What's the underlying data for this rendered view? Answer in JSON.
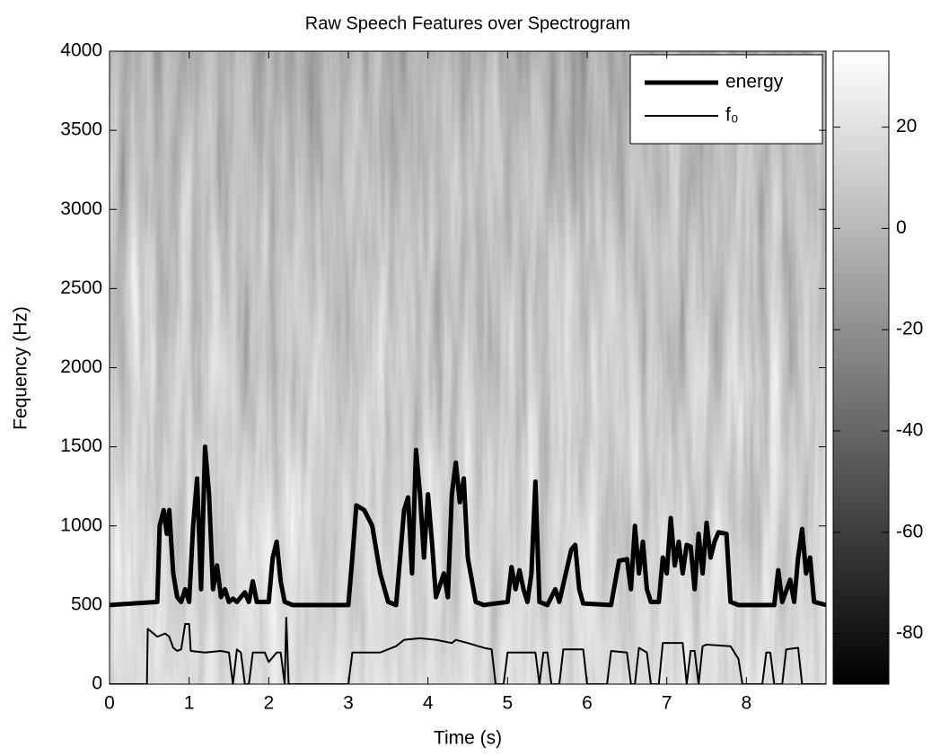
{
  "chart_data": {
    "type": "line",
    "title": "Raw Speech Features over Spectrogram",
    "xlabel": "Time (s)",
    "ylabel": "Fequency (Hz)",
    "xlim": [
      0,
      9
    ],
    "ylim": [
      0,
      4000
    ],
    "xticks": [
      0,
      1,
      2,
      3,
      4,
      5,
      6,
      7,
      8
    ],
    "yticks": [
      0,
      500,
      1000,
      1500,
      2000,
      2500,
      3000,
      3500,
      4000
    ],
    "legend": "upper right",
    "series": [
      {
        "name": "energy",
        "color": "#000000",
        "line_width": 5,
        "x": [
          0,
          0.6,
          0.63,
          0.68,
          0.72,
          0.75,
          0.8,
          0.85,
          0.9,
          0.95,
          1.0,
          1.05,
          1.1,
          1.15,
          1.2,
          1.25,
          1.3,
          1.35,
          1.4,
          1.45,
          1.5,
          1.55,
          1.6,
          1.7,
          1.75,
          1.8,
          1.85,
          1.9,
          2.0,
          2.05,
          2.1,
          2.15,
          2.2,
          2.3,
          3.0,
          3.05,
          3.1,
          3.2,
          3.3,
          3.4,
          3.5,
          3.6,
          3.7,
          3.75,
          3.8,
          3.85,
          3.9,
          3.95,
          4.0,
          4.05,
          4.1,
          4.2,
          4.25,
          4.3,
          4.35,
          4.4,
          4.45,
          4.5,
          4.6,
          4.7,
          5.0,
          5.05,
          5.1,
          5.15,
          5.2,
          5.25,
          5.3,
          5.35,
          5.4,
          5.5,
          5.6,
          5.65,
          5.8,
          5.85,
          5.9,
          5.95,
          6.3,
          6.4,
          6.5,
          6.55,
          6.6,
          6.65,
          6.7,
          6.75,
          6.8,
          6.9,
          6.95,
          7.0,
          7.05,
          7.1,
          7.15,
          7.2,
          7.25,
          7.3,
          7.35,
          7.4,
          7.45,
          7.5,
          7.55,
          7.6,
          7.65,
          7.75,
          7.8,
          7.9,
          8.35,
          8.4,
          8.45,
          8.55,
          8.6,
          8.65,
          8.7,
          8.75,
          8.8,
          8.85,
          9.0
        ],
        "values": [
          500,
          520,
          1000,
          1100,
          950,
          1100,
          700,
          550,
          520,
          600,
          520,
          1000,
          1300,
          600,
          1500,
          1200,
          600,
          750,
          550,
          600,
          520,
          540,
          520,
          580,
          520,
          650,
          520,
          520,
          520,
          800,
          900,
          650,
          520,
          500,
          500,
          800,
          1130,
          1100,
          1000,
          700,
          520,
          500,
          1100,
          1180,
          700,
          1480,
          1200,
          800,
          1200,
          900,
          550,
          700,
          550,
          1200,
          1400,
          1150,
          1300,
          800,
          520,
          500,
          520,
          740,
          600,
          720,
          600,
          520,
          700,
          1280,
          520,
          500,
          600,
          520,
          850,
          880,
          600,
          510,
          500,
          780,
          790,
          600,
          1000,
          700,
          900,
          600,
          520,
          520,
          800,
          700,
          1050,
          750,
          900,
          700,
          880,
          870,
          600,
          950,
          700,
          1020,
          800,
          900,
          960,
          950,
          520,
          500,
          500,
          720,
          520,
          660,
          520,
          800,
          980,
          700,
          800,
          520,
          500
        ]
      },
      {
        "name": "f₀",
        "color": "#000000",
        "line_width": 2,
        "x": [
          0,
          0.47,
          0.48,
          0.6,
          0.7,
          0.75,
          0.8,
          0.85,
          0.9,
          0.95,
          1.0,
          1.02,
          1.2,
          1.4,
          1.5,
          1.55,
          1.6,
          1.65,
          1.7,
          1.75,
          1.8,
          1.95,
          2.0,
          2.1,
          2.15,
          2.2,
          2.22,
          2.25,
          3.0,
          3.05,
          3.2,
          3.4,
          3.5,
          3.6,
          3.7,
          3.9,
          4.1,
          4.3,
          4.35,
          4.5,
          4.7,
          4.8,
          4.85,
          4.95,
          5.0,
          5.2,
          5.35,
          5.4,
          5.45,
          5.5,
          5.55,
          5.65,
          5.7,
          5.95,
          6.0,
          6.25,
          6.3,
          6.5,
          6.55,
          6.6,
          6.65,
          6.75,
          6.8,
          6.9,
          6.95,
          7.2,
          7.25,
          7.3,
          7.35,
          7.4,
          7.45,
          7.5,
          7.8,
          7.9,
          7.95,
          8.2,
          8.25,
          8.3,
          8.35,
          8.45,
          8.5,
          8.65,
          8.7,
          9.0
        ],
        "values": [
          0,
          0,
          350,
          300,
          320,
          300,
          230,
          210,
          220,
          380,
          380,
          210,
          200,
          210,
          200,
          0,
          220,
          200,
          0,
          0,
          200,
          200,
          140,
          200,
          200,
          0,
          420,
          0,
          0,
          200,
          200,
          200,
          220,
          240,
          280,
          290,
          280,
          260,
          280,
          260,
          230,
          220,
          0,
          0,
          200,
          200,
          200,
          0,
          200,
          200,
          0,
          0,
          220,
          220,
          0,
          0,
          210,
          200,
          0,
          0,
          230,
          200,
          0,
          0,
          260,
          260,
          0,
          210,
          210,
          0,
          240,
          250,
          240,
          160,
          0,
          0,
          200,
          200,
          0,
          0,
          220,
          230,
          0,
          0
        ]
      }
    ],
    "colorbar": {
      "lim": [
        -90,
        35
      ],
      "ticks": [
        20,
        0,
        -20,
        -40,
        -60,
        -80
      ],
      "colors": [
        "#000000",
        "#ffffff"
      ]
    }
  }
}
